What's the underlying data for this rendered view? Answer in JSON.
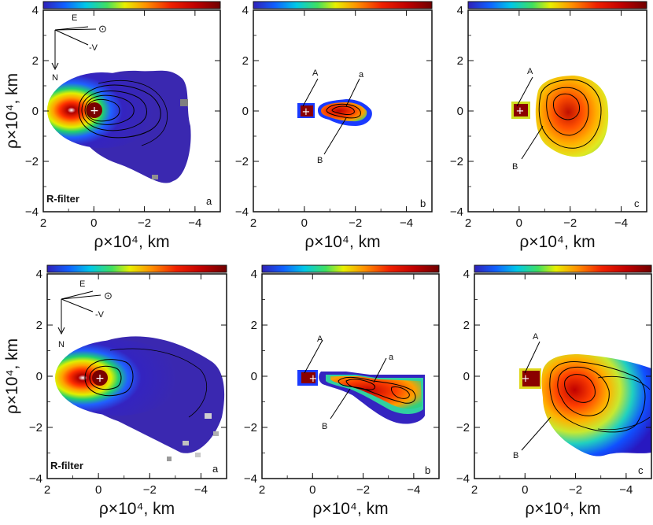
{
  "chart_data": [
    {
      "type": "heatmap",
      "panel": "a",
      "row": "top",
      "filter_label": "R-filter",
      "ylabel": "ρ×10⁴, km",
      "xlabel": "ρ×10⁴, km",
      "xlim": [
        2,
        -5
      ],
      "ylim": [
        -4,
        4
      ],
      "xticks": [
        "2",
        "0",
        "−2",
        "−4"
      ],
      "yticks": [
        "4",
        "2",
        "0",
        "−2",
        "−4"
      ],
      "nucleus": [
        0,
        0
      ],
      "orientation": {
        "E": "E",
        "N": "N",
        "sun": "⊙",
        "V": "-V"
      }
    },
    {
      "type": "heatmap",
      "panel": "b",
      "row": "top",
      "xlabel": "ρ×10⁴, km",
      "xlim": [
        2,
        -5
      ],
      "ylim": [
        -4,
        4
      ],
      "xticks": [
        "2",
        "0",
        "−2",
        "−4"
      ],
      "yticks": [
        "4",
        "2",
        "0",
        "−2",
        "−4"
      ],
      "nucleus": [
        0,
        0
      ],
      "annotations": [
        "A",
        "a",
        "B"
      ]
    },
    {
      "type": "heatmap",
      "panel": "c",
      "row": "top",
      "xlabel": "ρ×10⁴, km",
      "xlim": [
        2,
        -5
      ],
      "ylim": [
        -4,
        4
      ],
      "xticks": [
        "2",
        "0",
        "−2",
        "−4"
      ],
      "yticks": [
        "4",
        "2",
        "0",
        "−2",
        "−4"
      ],
      "nucleus": [
        0,
        0
      ],
      "annotations": [
        "A",
        "B"
      ]
    },
    {
      "type": "heatmap",
      "panel": "a",
      "row": "bottom",
      "filter_label": "R-filter",
      "ylabel": "ρ×10⁴, km",
      "xlabel": "ρ×10⁴, km",
      "xlim": [
        2,
        -5
      ],
      "ylim": [
        -4,
        4
      ],
      "xticks": [
        "2",
        "0",
        "−2",
        "−4"
      ],
      "yticks": [
        "4",
        "2",
        "0",
        "−2",
        "−4"
      ],
      "nucleus": [
        0,
        0
      ],
      "orientation": {
        "E": "E",
        "N": "N",
        "sun": "⊙",
        "V": "-V"
      }
    },
    {
      "type": "heatmap",
      "panel": "b",
      "row": "bottom",
      "xlabel": "ρ×10⁴, km",
      "xlim": [
        2,
        -5
      ],
      "ylim": [
        -4,
        4
      ],
      "xticks": [
        "2",
        "0",
        "−2",
        "−4"
      ],
      "yticks": [
        "4",
        "2",
        "0",
        "−2",
        "−4"
      ],
      "nucleus": [
        0,
        0
      ],
      "annotations": [
        "A",
        "a",
        "B"
      ]
    },
    {
      "type": "heatmap",
      "panel": "c",
      "row": "bottom",
      "xlabel": "ρ×10⁴, km",
      "xlim": [
        2,
        -5
      ],
      "ylim": [
        -4,
        4
      ],
      "xticks": [
        "2",
        "0",
        "−2",
        "−4"
      ],
      "yticks": [
        "4",
        "2",
        "0",
        "−2",
        "−4"
      ],
      "nucleus": [
        0,
        0
      ],
      "annotations": [
        "A",
        "B"
      ]
    }
  ],
  "colors": {
    "frame": "#111111",
    "nucleus": "#8b0000",
    "low": "#2a1cc8",
    "high": "#a00000"
  }
}
